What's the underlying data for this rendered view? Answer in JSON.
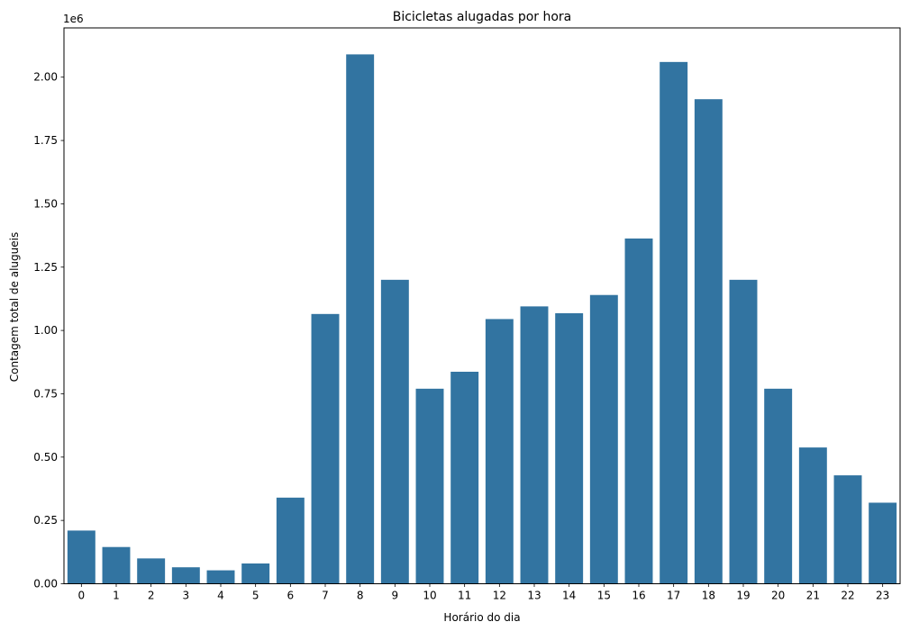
{
  "chart_data": {
    "type": "bar",
    "title": "Bicicletas alugadas por hora",
    "xlabel": "Horário do dia",
    "ylabel": "Contagem total de alugueis",
    "y_offset_label": "1e6",
    "categories": [
      "0",
      "1",
      "2",
      "3",
      "4",
      "5",
      "6",
      "7",
      "8",
      "9",
      "10",
      "11",
      "12",
      "13",
      "14",
      "15",
      "16",
      "17",
      "18",
      "19",
      "20",
      "21",
      "22",
      "23"
    ],
    "values": [
      210000,
      145000,
      100000,
      65000,
      53000,
      80000,
      340000,
      1065000,
      2090000,
      1200000,
      770000,
      837000,
      1045000,
      1095000,
      1068000,
      1140000,
      1363000,
      2060000,
      1913000,
      1200000,
      770000,
      538000,
      428000,
      320000
    ],
    "yticks": [
      0,
      250000,
      500000,
      750000,
      1000000,
      1250000,
      1500000,
      1750000,
      2000000
    ],
    "ytick_labels": [
      "0.00",
      "0.25",
      "0.50",
      "0.75",
      "1.00",
      "1.25",
      "1.50",
      "1.75",
      "2.00"
    ],
    "ylim": [
      0,
      2194500
    ],
    "grid": false,
    "bar_color": "#3274a1"
  }
}
